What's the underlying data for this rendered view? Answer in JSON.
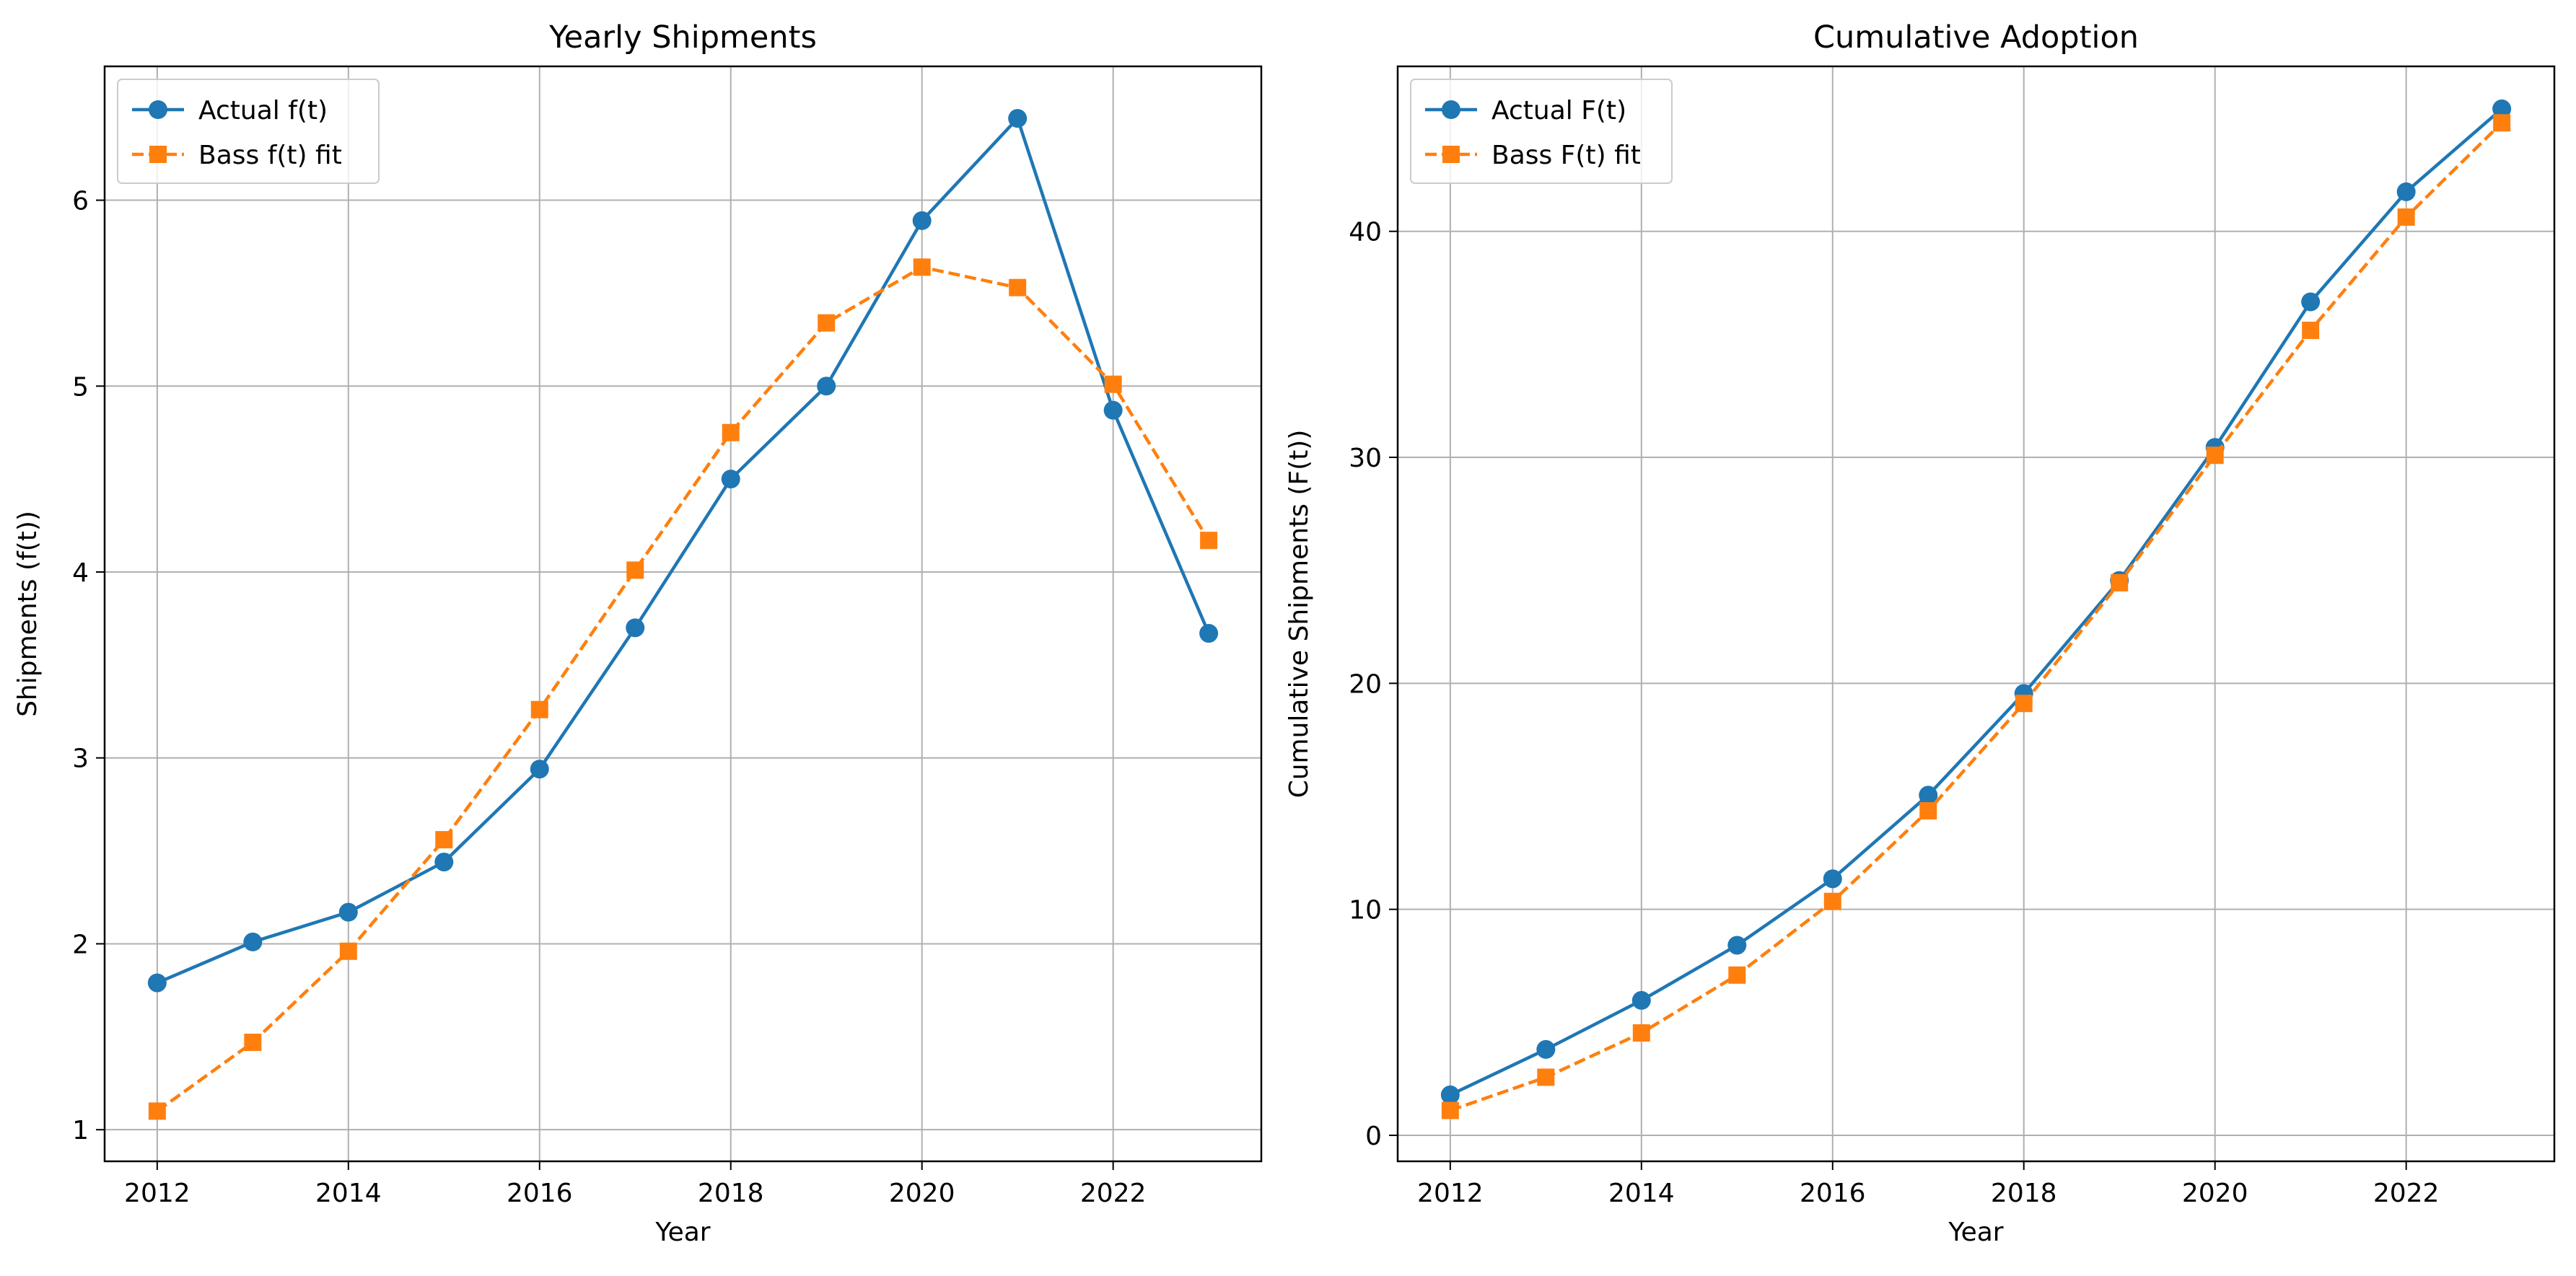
{
  "chart_data": [
    {
      "type": "line",
      "title": "Yearly Shipments",
      "xlabel": "Year",
      "ylabel": "Shipments (f(t))",
      "x": [
        2012,
        2013,
        2014,
        2015,
        2016,
        2017,
        2018,
        2019,
        2020,
        2021,
        2022,
        2023
      ],
      "xticks": [
        "2012",
        "2014",
        "2016",
        "2018",
        "2020",
        "2022"
      ],
      "yticks": [
        "1",
        "2",
        "3",
        "4",
        "5",
        "6"
      ],
      "xlim": [
        2011.45,
        2023.55
      ],
      "ylim": [
        0.83,
        6.72
      ],
      "grid": true,
      "legend_position": "top-left",
      "series": [
        {
          "name": "Actual f(t)",
          "color": "#1f77b4",
          "marker": "circle",
          "linestyle": "solid",
          "values": [
            1.79,
            2.01,
            2.17,
            2.44,
            2.94,
            3.7,
            4.5,
            5.0,
            5.89,
            6.44,
            4.87,
            3.67
          ]
        },
        {
          "name": "Bass f(t) fit",
          "color": "#ff7f0e",
          "marker": "square",
          "linestyle": "dashed",
          "values": [
            1.1,
            1.47,
            1.96,
            2.56,
            3.26,
            4.01,
            4.75,
            5.34,
            5.64,
            5.53,
            5.01,
            4.17
          ]
        }
      ]
    },
    {
      "type": "line",
      "title": "Cumulative Adoption",
      "xlabel": "Year",
      "ylabel": "Cumulative Shipments (F(t))",
      "x": [
        2012,
        2013,
        2014,
        2015,
        2016,
        2017,
        2018,
        2019,
        2020,
        2021,
        2022,
        2023
      ],
      "xticks": [
        "2012",
        "2014",
        "2016",
        "2018",
        "2020",
        "2022"
      ],
      "yticks": [
        "0",
        "10",
        "20",
        "30",
        "40"
      ],
      "xlim": [
        2011.45,
        2023.55
      ],
      "ylim": [
        -1.15,
        47.3
      ],
      "grid": true,
      "legend_position": "top-left",
      "series": [
        {
          "name": "Actual F(t)",
          "color": "#1f77b4",
          "marker": "circle",
          "linestyle": "solid",
          "values": [
            1.79,
            3.8,
            5.97,
            8.41,
            11.35,
            15.05,
            19.55,
            24.55,
            30.44,
            36.88,
            41.75,
            45.42
          ]
        },
        {
          "name": "Bass F(t) fit",
          "color": "#ff7f0e",
          "marker": "square",
          "linestyle": "dashed",
          "values": [
            1.1,
            2.57,
            4.53,
            7.09,
            10.35,
            14.36,
            19.11,
            24.45,
            30.09,
            35.62,
            40.63,
            44.8
          ]
        }
      ]
    }
  ]
}
